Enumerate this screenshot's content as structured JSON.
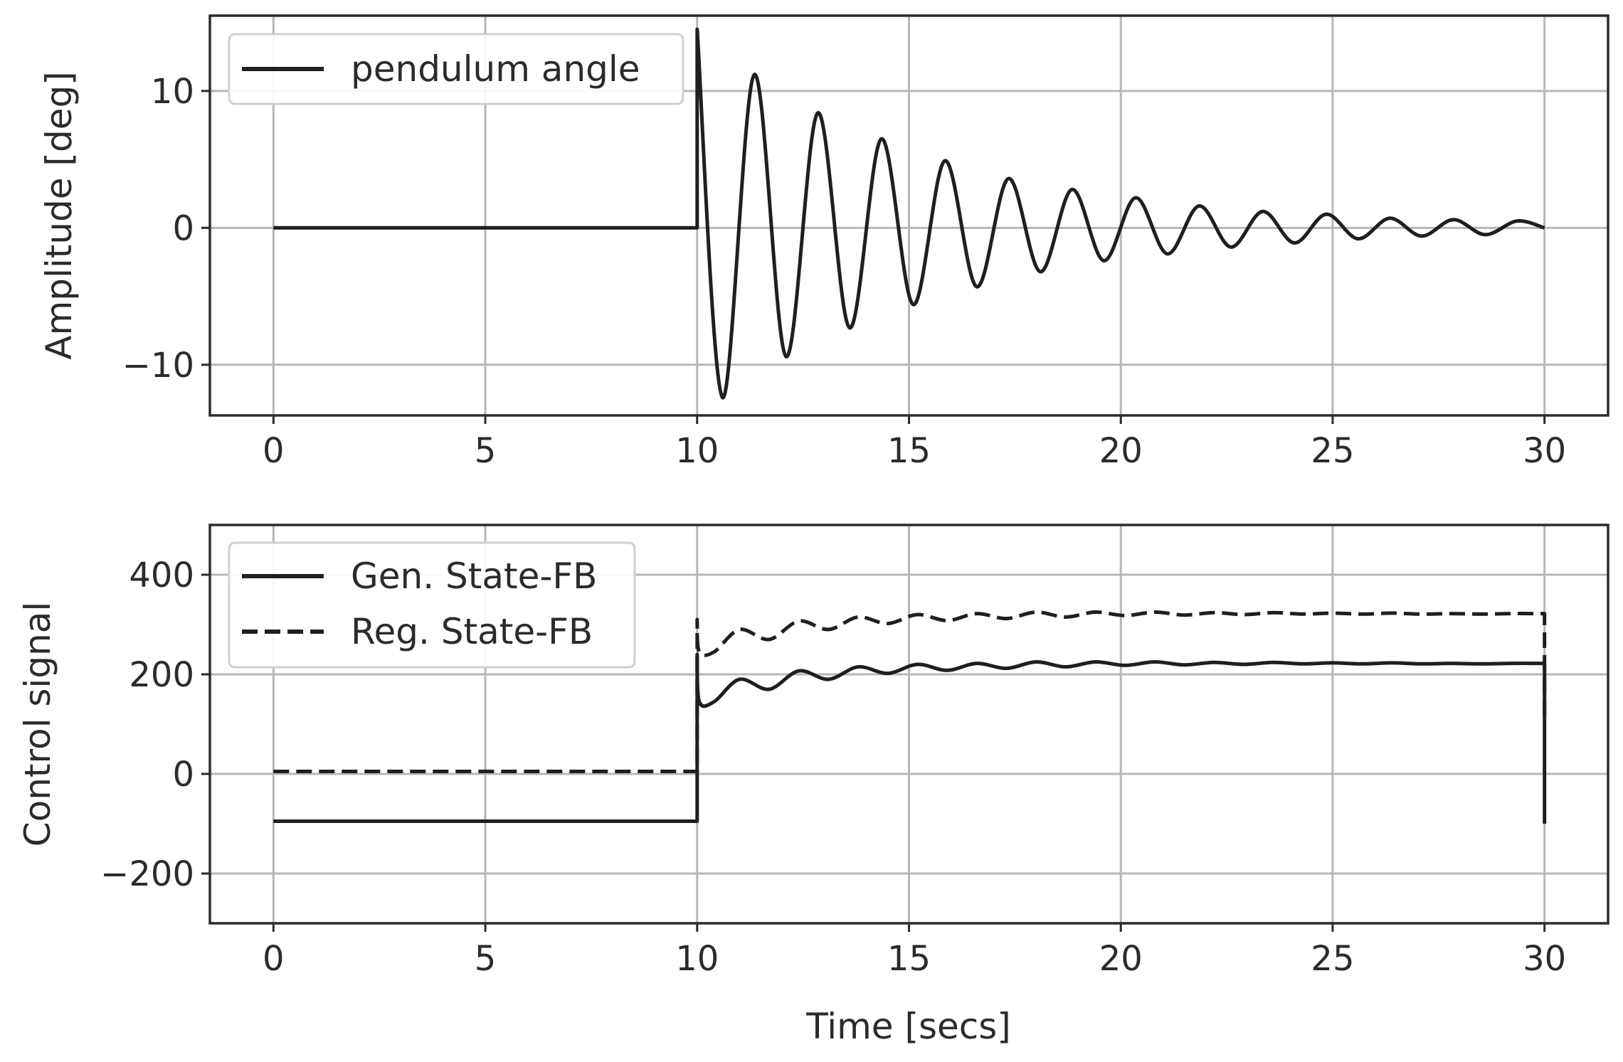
{
  "chart_data": [
    {
      "type": "line",
      "xlabel": "",
      "ylabel": "Amplitude [deg]",
      "xlim": [
        -1.5,
        31.5
      ],
      "ylim": [
        -13.7,
        15.5
      ],
      "xticks": [
        0,
        5,
        10,
        15,
        20,
        25,
        30
      ],
      "xtick_labels": [
        "0",
        "5",
        "10",
        "15",
        "20",
        "25",
        "30"
      ],
      "yticks": [
        -10,
        0,
        10
      ],
      "ytick_labels": [
        "−10",
        "0",
        "10"
      ],
      "grid": true,
      "legend_position": "upper-left",
      "series": [
        {
          "name": "pendulum angle",
          "style": "solid",
          "x": [
            0,
            10,
            10,
            10.6,
            11.35,
            12.1,
            12.85,
            13.6,
            14.35,
            15.1,
            15.85,
            16.6,
            17.35,
            18.1,
            18.85,
            19.6,
            20.35,
            21.1,
            21.85,
            22.6,
            23.35,
            24.1,
            24.85,
            25.6,
            26.35,
            27.1,
            27.85,
            28.6,
            29.35,
            30
          ],
          "y": [
            0,
            0,
            14.5,
            -12.4,
            11.2,
            -9.4,
            8.4,
            -7.3,
            6.5,
            -5.6,
            4.9,
            -4.3,
            3.6,
            -3.2,
            2.8,
            -2.4,
            2.2,
            -1.9,
            1.6,
            -1.4,
            1.2,
            -1.1,
            1.0,
            -0.8,
            0.7,
            -0.6,
            0.6,
            -0.5,
            0.5,
            0
          ]
        }
      ]
    },
    {
      "type": "line",
      "xlabel": "Time [secs]",
      "ylabel": "Control signal",
      "xlim": [
        -1.5,
        31.5
      ],
      "ylim": [
        -300,
        500
      ],
      "xticks": [
        0,
        5,
        10,
        15,
        20,
        25,
        30
      ],
      "xtick_labels": [
        "0",
        "5",
        "10",
        "15",
        "20",
        "25",
        "30"
      ],
      "yticks": [
        -200,
        0,
        200,
        400
      ],
      "ytick_labels": [
        "−200",
        "0",
        "200",
        "400"
      ],
      "grid": true,
      "legend_position": "upper-left",
      "series": [
        {
          "name": "Gen. State-FB",
          "style": "solid",
          "x": [
            0,
            10,
            10,
            10.05,
            10.4,
            11.0,
            11.7,
            12.4,
            13.1,
            13.8,
            14.5,
            15.2,
            15.9,
            16.6,
            17.3,
            18.0,
            18.7,
            19.4,
            20.1,
            20.8,
            21.5,
            22.2,
            22.9,
            23.6,
            24.3,
            25.0,
            25.7,
            26.4,
            27.1,
            27.8,
            28.5,
            29.2,
            29.9,
            30,
            30
          ],
          "y": [
            -95,
            -95,
            240,
            145,
            145,
            190,
            170,
            207,
            190,
            215,
            202,
            220,
            208,
            222,
            212,
            225,
            215,
            225,
            218,
            225,
            219,
            224,
            220,
            224,
            221,
            223,
            221,
            223,
            221,
            222,
            221,
            222,
            222,
            222,
            -100
          ]
        },
        {
          "name": "Reg. State-FB",
          "style": "dashed",
          "x": [
            0,
            10,
            10,
            10.05,
            10.4,
            11.0,
            11.7,
            12.4,
            13.1,
            13.8,
            14.5,
            15.2,
            15.9,
            16.6,
            17.3,
            18.0,
            18.7,
            19.4,
            20.1,
            20.8,
            21.5,
            22.2,
            22.9,
            23.6,
            24.3,
            25.0,
            25.7,
            26.4,
            27.1,
            27.8,
            28.5,
            29.2,
            29.9,
            30,
            30
          ],
          "y": [
            5,
            5,
            310,
            245,
            245,
            290,
            270,
            307,
            290,
            315,
            302,
            320,
            308,
            322,
            312,
            325,
            315,
            325,
            318,
            325,
            319,
            324,
            320,
            324,
            321,
            323,
            321,
            323,
            321,
            322,
            321,
            322,
            322,
            322,
            110
          ]
        }
      ]
    }
  ]
}
